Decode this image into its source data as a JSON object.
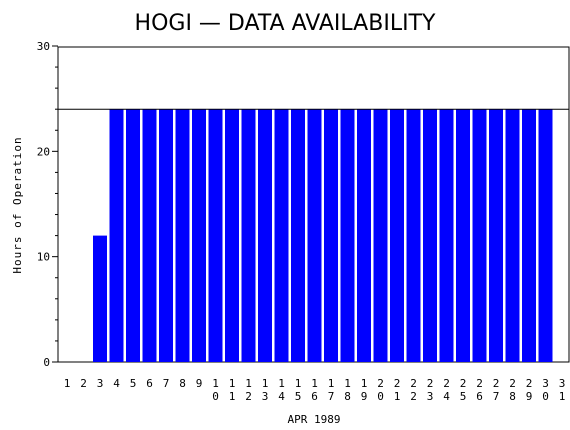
{
  "chart_data": {
    "type": "bar",
    "title": "HOGI — DATA AVAILABILITY",
    "xlabel": "APR 1989",
    "ylabel": "Hours of Operation",
    "ylim": [
      0,
      30
    ],
    "yticks": [
      0,
      10,
      20,
      30
    ],
    "reference_line": 24,
    "grid": false,
    "legend": "none",
    "bar_color": "#0000ff",
    "categories": [
      "1",
      "2",
      "3",
      "4",
      "5",
      "6",
      "7",
      "8",
      "9",
      "10",
      "11",
      "12",
      "13",
      "14",
      "15",
      "16",
      "17",
      "18",
      "19",
      "20",
      "21",
      "22",
      "23",
      "24",
      "25",
      "26",
      "27",
      "28",
      "29",
      "30",
      "31"
    ],
    "values": [
      0,
      0,
      12,
      24,
      24,
      24,
      24,
      24,
      24,
      24,
      24,
      24,
      24,
      24,
      24,
      24,
      24,
      24,
      24,
      24,
      24,
      24,
      24,
      24,
      24,
      24,
      24,
      24,
      24,
      24,
      0
    ]
  }
}
